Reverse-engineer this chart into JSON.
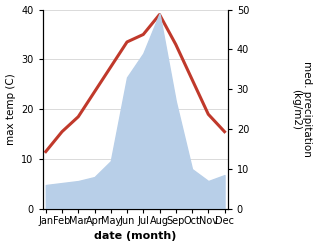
{
  "months": [
    "Jan",
    "Feb",
    "Mar",
    "Apr",
    "May",
    "Jun",
    "Jul",
    "Aug",
    "Sep",
    "Oct",
    "Nov",
    "Dec"
  ],
  "temperature": [
    11.5,
    15.5,
    18.5,
    23.5,
    28.5,
    33.5,
    35.0,
    39.0,
    33.0,
    26.0,
    19.0,
    15.5
  ],
  "precipitation": [
    6.0,
    6.5,
    7.0,
    8.0,
    12.0,
    33.0,
    39.0,
    49.0,
    27.0,
    10.0,
    7.0,
    8.5
  ],
  "temp_color": "#c0392b",
  "precip_color": "#b8cfe8",
  "temp_ylim": [
    0,
    40
  ],
  "precip_ylim": [
    0,
    50
  ],
  "temp_yticks": [
    0,
    10,
    20,
    30,
    40
  ],
  "precip_yticks": [
    0,
    10,
    20,
    30,
    40,
    50
  ],
  "ylabel_left": "max temp (C)",
  "ylabel_right": "med. precipitation\n(kg/m2)",
  "xlabel": "date (month)",
  "bg_color": "#ffffff",
  "line_width": 2.2,
  "label_fontsize": 7.5,
  "tick_fontsize": 7,
  "xlabel_fontsize": 8
}
